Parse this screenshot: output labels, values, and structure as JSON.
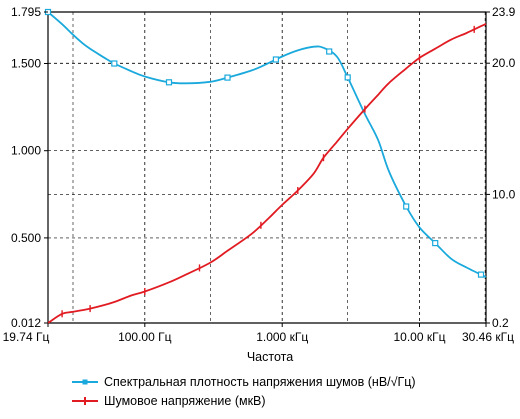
{
  "chart_data": {
    "type": "line",
    "x_axis": {
      "label": "Частота",
      "scale": "log",
      "range_hz": [
        19.74,
        30460
      ],
      "tick_labels": [
        {
          "value": 19.74,
          "label": "19.74 Гц"
        },
        {
          "value": 100,
          "label": "100.00 Гц"
        },
        {
          "value": 1000,
          "label": "1.000 кГц"
        },
        {
          "value": 10000,
          "label": "10.00 кГц"
        },
        {
          "value": 30460,
          "label": "30.46 кГц"
        }
      ]
    },
    "y_left": {
      "range": [
        0.012,
        1.795
      ],
      "tick_labels": [
        {
          "value": 1.795,
          "label": "1.795"
        },
        {
          "value": 1.5,
          "label": "1.500"
        },
        {
          "value": 1.0,
          "label": "1.000"
        },
        {
          "value": 0.5,
          "label": "0.500"
        },
        {
          "value": 0.012,
          "label": "0.012"
        }
      ]
    },
    "y_right": {
      "range": [
        0.2,
        23.9
      ],
      "tick_labels": [
        {
          "value": 23.9,
          "label": "23.9"
        },
        {
          "value": 20.0,
          "label": "20.0"
        },
        {
          "value": 10.0,
          "label": "10.0"
        },
        {
          "value": 0.2,
          "label": "0.2"
        }
      ]
    },
    "grid": true,
    "legend_position": "bottom",
    "series": [
      {
        "name": "Спектральная плотность напряжения шумов (нВ/√Гц)",
        "axis": "left",
        "color": "#1aa9dc",
        "marker": "square",
        "x": [
          19.74,
          25,
          30,
          35,
          40,
          50,
          60,
          80,
          100,
          150,
          200,
          300,
          400,
          600,
          800,
          1000,
          1300,
          1700,
          2000,
          2500,
          3000,
          4000,
          5000,
          6000,
          8000,
          10000,
          13000,
          17000,
          22000,
          30460
        ],
        "y": [
          1.795,
          1.725,
          1.665,
          1.618,
          1.584,
          1.536,
          1.5,
          1.455,
          1.425,
          1.392,
          1.386,
          1.395,
          1.419,
          1.46,
          1.503,
          1.54,
          1.575,
          1.596,
          1.59,
          1.54,
          1.42,
          1.21,
          1.06,
          0.88,
          0.68,
          0.56,
          0.47,
          0.38,
          0.33,
          0.275
        ],
        "markers_x": [
          19.74,
          60,
          150,
          400,
          900,
          2200,
          3000,
          8000,
          13000,
          28000
        ]
      },
      {
        "name": "Шумовое напряжение (мкВ)",
        "axis": "right",
        "color": "#e11b22",
        "marker": "plus",
        "x": [
          19.74,
          25,
          30,
          40,
          50,
          60,
          80,
          100,
          150,
          200,
          300,
          400,
          600,
          800,
          1000,
          1300,
          1700,
          2000,
          2500,
          3000,
          4000,
          5000,
          6000,
          8000,
          10000,
          13000,
          17000,
          22000,
          30460
        ],
        "y": [
          0.2,
          0.9,
          1.05,
          1.3,
          1.55,
          1.8,
          2.3,
          2.6,
          3.3,
          3.9,
          4.8,
          5.7,
          7.0,
          8.2,
          9.2,
          10.3,
          11.6,
          12.8,
          14.0,
          15.0,
          16.5,
          17.6,
          18.5,
          19.6,
          20.4,
          21.1,
          21.8,
          22.3,
          23.0
        ],
        "markers_x": [
          25,
          40,
          100,
          250,
          700,
          1300,
          2000,
          4000,
          10000,
          25000
        ]
      }
    ]
  },
  "legend": {
    "items": [
      {
        "label": "Спектральная плотность напряжения шумов (нВ/√Гц)",
        "color": "#1aa9dc"
      },
      {
        "label": "Шумовое напряжение (мкВ)",
        "color": "#e11b22"
      }
    ]
  }
}
